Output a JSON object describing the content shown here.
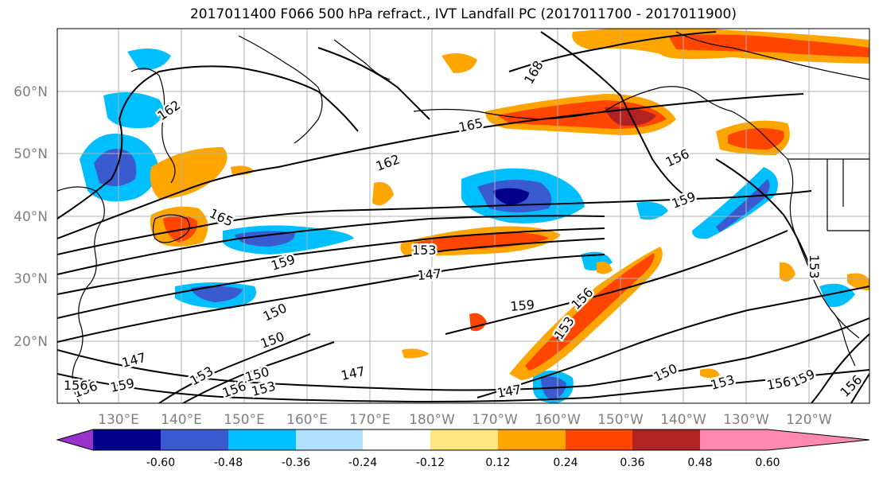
{
  "title": "2017011400 F066 500 hPa refract., IVT Landfall PC (2017011700 - 2017011900)",
  "lon_labels": [
    "130°E",
    "140°E",
    "150°E",
    "160°E",
    "170°E",
    "180°W",
    "170°W",
    "160°W",
    "150°W",
    "140°W",
    "130°W",
    "120°W"
  ],
  "lat_labels": [
    "20°N",
    "30°N",
    "40°N",
    "50°N",
    "60°N"
  ],
  "colorbar": {
    "tick_labels": [
      "-0.60",
      "-0.48",
      "-0.36",
      "-0.24",
      "-0.12",
      "0.12",
      "0.24",
      "0.36",
      "0.48",
      "0.60"
    ],
    "colors": [
      "#9932cc",
      "#00008b",
      "#3a5bd0",
      "#00bfff",
      "#b0e2ff",
      "#ffffff",
      "#ffe680",
      "#ffa500",
      "#ff4500",
      "#b22222",
      "#ff88b0"
    ]
  },
  "contour_labels": [
    "162",
    "165",
    "168",
    "165",
    "162",
    "156",
    "159",
    "159",
    "153",
    "147",
    "150",
    "150",
    "147",
    "150",
    "153",
    "156",
    "159",
    "156",
    "153",
    "156",
    "153",
    "150",
    "153",
    "156",
    "159",
    "156",
    "147",
    "147",
    "159",
    "156",
    "153"
  ]
}
